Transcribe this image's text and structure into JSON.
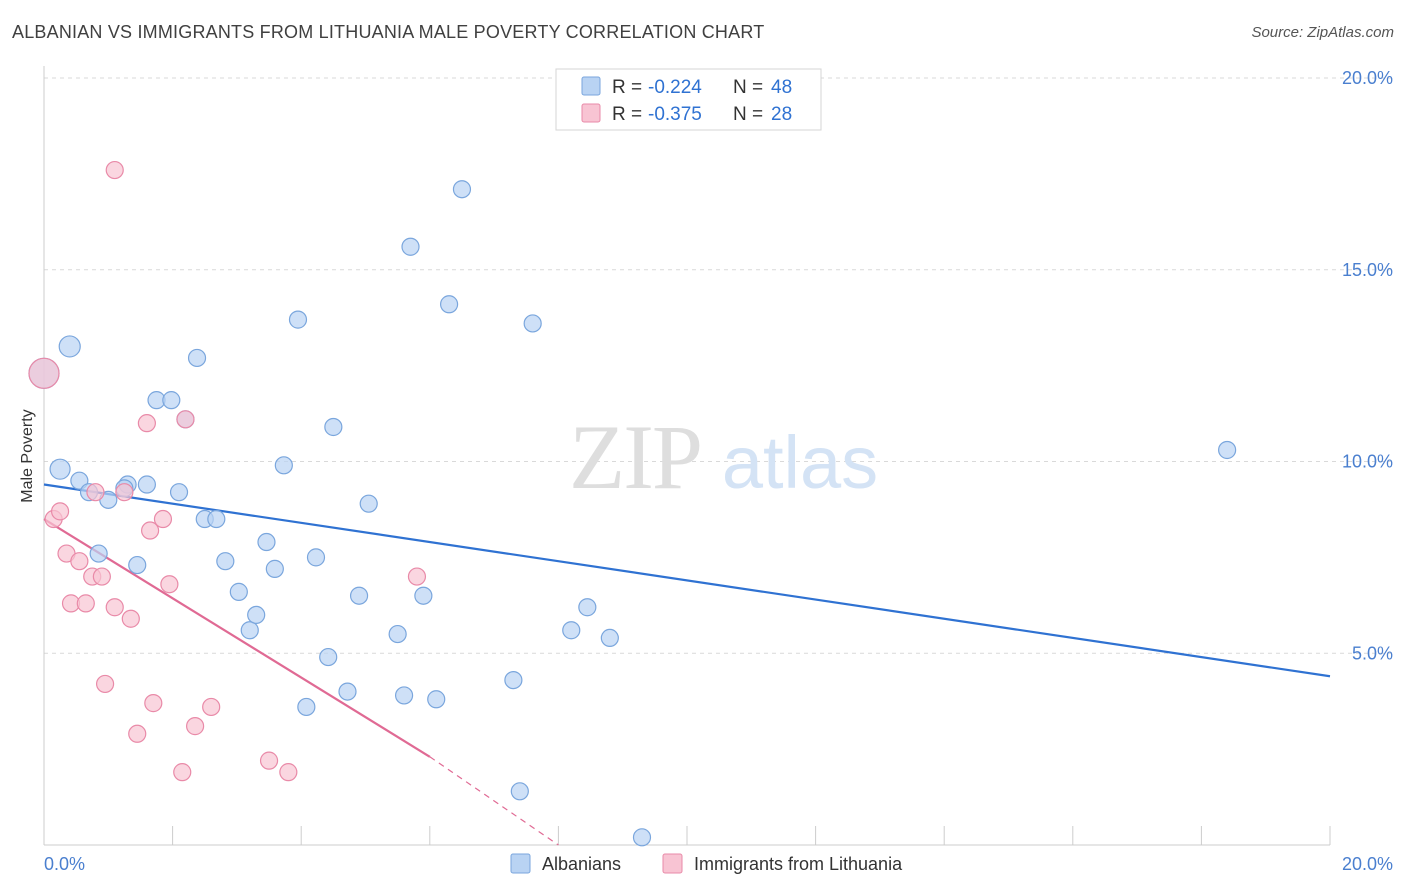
{
  "title": "ALBANIAN VS IMMIGRANTS FROM LITHUANIA MALE POVERTY CORRELATION CHART",
  "source": "Source: ZipAtlas.com",
  "watermark": {
    "zip": "ZIP",
    "atlas": "atlas"
  },
  "colors": {
    "blue_fill": "#b9d3f3",
    "blue_stroke": "#7aa6dd",
    "blue_line": "#2f72d2",
    "pink_fill": "#f8c4d3",
    "pink_stroke": "#e98aa8",
    "pink_line": "#e06a94",
    "tick_text": "#4a7fcf",
    "grid": "#d9d9d9"
  },
  "legend": {
    "rows": [
      {
        "r_label": "R = ",
        "r_value": "-0.224",
        "n_label": "N = ",
        "n_value": "48",
        "series": "blue"
      },
      {
        "r_label": "R = ",
        "r_value": "-0.375",
        "n_label": "N = ",
        "n_value": "28",
        "series": "pink"
      }
    ]
  },
  "chart_data": {
    "type": "scatter",
    "title": "ALBANIAN VS IMMIGRANTS FROM LITHUANIA MALE POVERTY CORRELATION CHART",
    "xlabel": "",
    "ylabel": "Male Poverty",
    "xlim": [
      0,
      20
    ],
    "ylim": [
      0,
      20
    ],
    "x_tick_labels": [
      "0.0%",
      "20.0%"
    ],
    "y_tick_labels": [
      "5.0%",
      "10.0%",
      "15.0%",
      "20.0%"
    ],
    "y_ticks": [
      5,
      10,
      15,
      20
    ],
    "grid": true,
    "legend_position": "top-center",
    "series": [
      {
        "name": "Albanians",
        "color": "#b9d3f3",
        "points": [
          [
            0.0,
            12.3
          ],
          [
            0.4,
            13.0
          ],
          [
            0.25,
            9.8
          ],
          [
            0.55,
            9.5
          ],
          [
            0.7,
            9.2
          ],
          [
            1.0,
            9.0
          ],
          [
            1.3,
            9.4
          ],
          [
            1.6,
            9.4
          ],
          [
            0.85,
            7.6
          ],
          [
            1.45,
            7.3
          ],
          [
            1.75,
            11.6
          ],
          [
            1.98,
            11.6
          ],
          [
            2.2,
            11.1
          ],
          [
            2.1,
            9.2
          ],
          [
            2.38,
            12.7
          ],
          [
            2.5,
            8.5
          ],
          [
            2.68,
            8.5
          ],
          [
            2.82,
            7.4
          ],
          [
            3.03,
            6.6
          ],
          [
            3.2,
            5.6
          ],
          [
            3.3,
            6.0
          ],
          [
            3.46,
            7.9
          ],
          [
            3.59,
            7.2
          ],
          [
            3.73,
            9.9
          ],
          [
            3.95,
            13.7
          ],
          [
            4.08,
            3.6
          ],
          [
            4.23,
            7.5
          ],
          [
            4.42,
            4.9
          ],
          [
            4.5,
            10.9
          ],
          [
            4.72,
            4.0
          ],
          [
            4.9,
            6.5
          ],
          [
            5.05,
            8.9
          ],
          [
            5.5,
            5.5
          ],
          [
            5.6,
            3.9
          ],
          [
            5.7,
            15.6
          ],
          [
            5.9,
            6.5
          ],
          [
            6.1,
            3.8
          ],
          [
            6.3,
            14.1
          ],
          [
            6.5,
            17.1
          ],
          [
            7.3,
            4.3
          ],
          [
            7.4,
            1.4
          ],
          [
            7.6,
            13.6
          ],
          [
            8.2,
            5.6
          ],
          [
            8.45,
            6.2
          ],
          [
            8.8,
            5.4
          ],
          [
            9.3,
            0.2
          ],
          [
            18.4,
            10.3
          ],
          [
            1.25,
            9.3
          ]
        ]
      },
      {
        "name": "Immigrants from Lithuania",
        "color": "#f8c4d3",
        "points": [
          [
            0.0,
            12.3
          ],
          [
            0.15,
            8.5
          ],
          [
            0.25,
            8.7
          ],
          [
            0.35,
            7.6
          ],
          [
            0.42,
            6.3
          ],
          [
            0.55,
            7.4
          ],
          [
            0.65,
            6.3
          ],
          [
            0.75,
            7.0
          ],
          [
            0.9,
            7.0
          ],
          [
            0.95,
            4.2
          ],
          [
            1.1,
            6.2
          ],
          [
            1.25,
            9.2
          ],
          [
            1.35,
            5.9
          ],
          [
            1.45,
            2.9
          ],
          [
            1.6,
            11.0
          ],
          [
            1.65,
            8.2
          ],
          [
            1.7,
            3.7
          ],
          [
            1.85,
            8.5
          ],
          [
            1.95,
            6.8
          ],
          [
            2.15,
            1.9
          ],
          [
            2.2,
            11.1
          ],
          [
            2.35,
            3.1
          ],
          [
            2.6,
            3.6
          ],
          [
            3.5,
            2.2
          ],
          [
            3.8,
            1.9
          ],
          [
            5.8,
            7.0
          ],
          [
            1.1,
            17.6
          ],
          [
            0.8,
            9.2
          ]
        ]
      }
    ],
    "trendlines": [
      {
        "series": "Albanians",
        "x": [
          0,
          20
        ],
        "y": [
          9.4,
          4.4
        ]
      },
      {
        "series": "Immigrants from Lithuania",
        "x": [
          0,
          6.0
        ],
        "y": [
          8.5,
          2.3
        ],
        "dashed_to": [
          8.0,
          0.0
        ]
      }
    ]
  }
}
